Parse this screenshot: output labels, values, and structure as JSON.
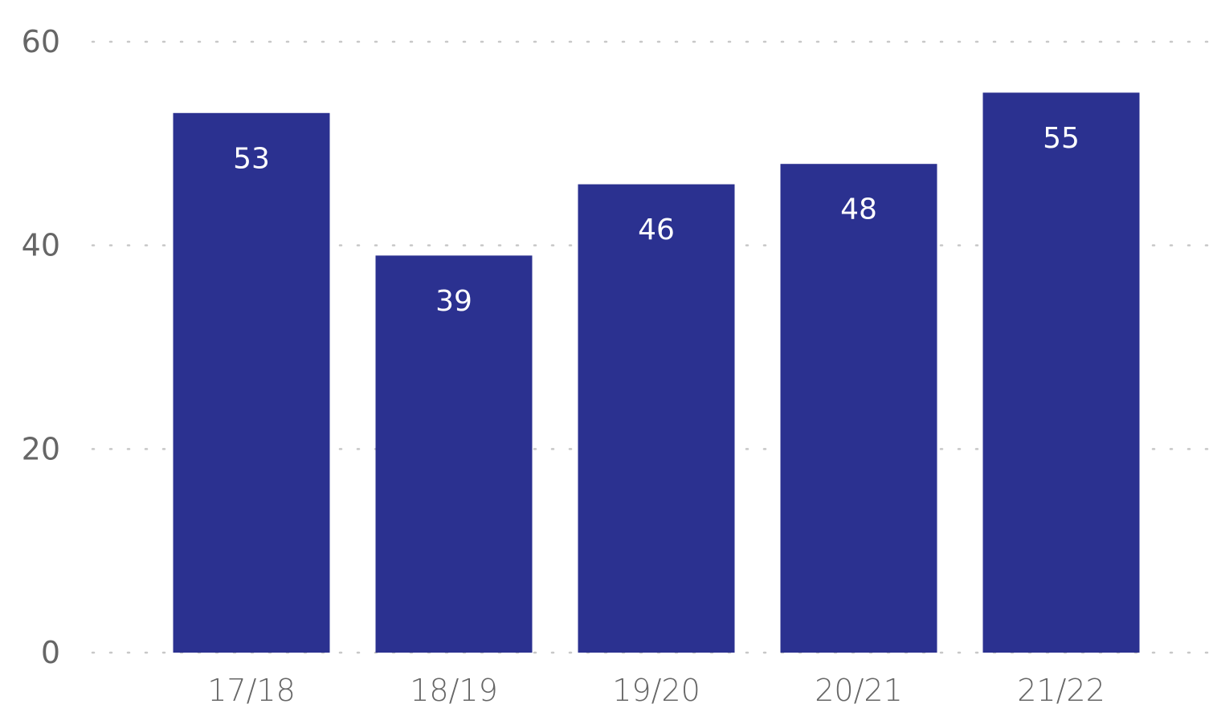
{
  "chart_data": {
    "type": "bar",
    "title": "",
    "xlabel": "",
    "ylabel": "",
    "categories": [
      "17/18",
      "18/19",
      "19/20",
      "20/21",
      "21/22"
    ],
    "values": [
      53,
      39,
      46,
      48,
      55
    ],
    "data_labels": [
      "53",
      "39",
      "46",
      "48",
      "55"
    ],
    "ylim": [
      0,
      60
    ],
    "y_ticks": [
      0,
      20,
      40,
      60
    ],
    "y_tick_labels": [
      "0",
      "20",
      "40",
      "60"
    ],
    "grid": true,
    "grid_style": "dotted",
    "legend": "none",
    "colors": {
      "bar": "#2b3190",
      "bar_label": "#ffffff",
      "tick_label": "#666666",
      "grid": "#c8c8c8"
    }
  }
}
